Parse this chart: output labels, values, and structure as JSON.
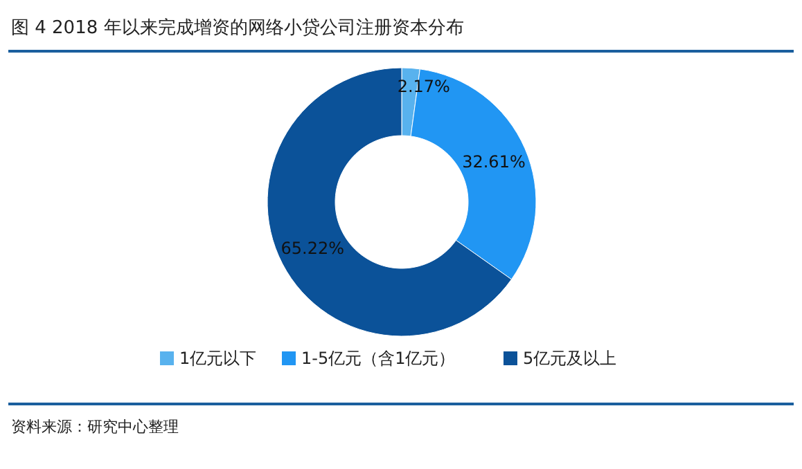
{
  "chart_data": {
    "type": "donut",
    "title": "图 4 2018 年以来完成增资的网络小贷公司注册资本分布",
    "categories": [
      "1亿元以下",
      "1-5亿元（含1亿元）",
      "5亿元及以上"
    ],
    "values": [
      2.17,
      32.61,
      65.22
    ],
    "colors": [
      "#58b2ee",
      "#2196f3",
      "#0b5299"
    ],
    "value_labels": [
      "2.17%",
      "32.61%",
      "65.22%"
    ],
    "legend": "bottom",
    "annotations": [
      "资料来源：研究中心整理"
    ]
  }
}
